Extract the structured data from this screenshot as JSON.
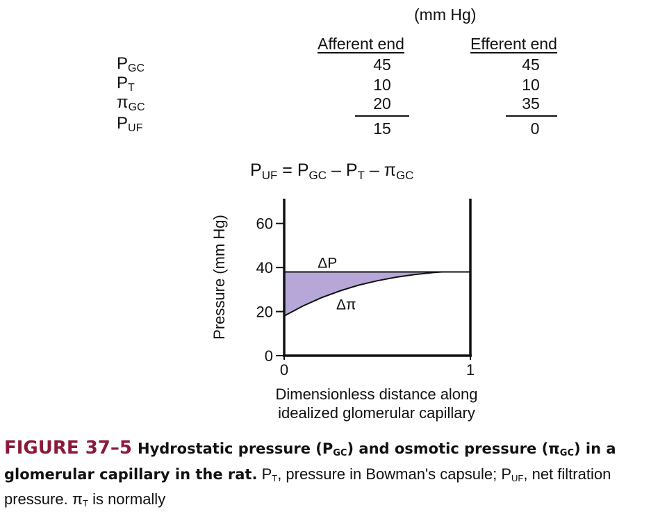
{
  "table": {
    "units": "(mm Hg)",
    "col_afferent": "Afferent end",
    "col_efferent": "Efferent end",
    "rows": [
      {
        "sym": "P",
        "sub": "GC",
        "afferent": "45",
        "efferent": "45"
      },
      {
        "sym": "P",
        "sub": "T",
        "afferent": "10",
        "efferent": "10"
      },
      {
        "sym": "π",
        "sub": "GC",
        "afferent": "20",
        "efferent": "35"
      },
      {
        "sym": "P",
        "sub": "UF",
        "afferent": "15",
        "efferent": "0"
      }
    ]
  },
  "equation": {
    "lhs": "P",
    "lhs_sub": "UF",
    "eq": " = P",
    "t1_sub": "GC",
    "minus1": " – P",
    "t2_sub": "T",
    "minus2": " – π",
    "t3_sub": "GC"
  },
  "chart_data": {
    "type": "area",
    "ylabel": "Pressure (mm Hg)",
    "xlabel_line1": "Dimensionless distance along",
    "xlabel_line2": "idealized glomerular capillary",
    "xlim": [
      0,
      1
    ],
    "ylim": [
      0,
      70
    ],
    "yticks": [
      0,
      20,
      40,
      60
    ],
    "xticks": [
      0,
      1
    ],
    "series": [
      {
        "name": "ΔP",
        "x": [
          0,
          1
        ],
        "y": [
          38,
          38
        ]
      },
      {
        "name": "Δπ",
        "x": [
          0,
          0.1,
          0.2,
          0.3,
          0.4,
          0.5,
          0.6,
          0.7,
          0.8,
          0.85,
          1.0
        ],
        "y": [
          18,
          22.5,
          26.3,
          29.4,
          32,
          34,
          35.6,
          36.8,
          37.7,
          38,
          38
        ]
      }
    ],
    "fill_color": "#b7a6d8",
    "line_color": "#111111"
  },
  "caption": {
    "figure_label": "FIGURE 37–5",
    "bold_1": "Hydrostatic pressure (P",
    "bold_1_sub": "GC",
    "bold_2": ") and osmotic pressure (π",
    "bold_2_sub": "GC",
    "bold_3": ") in a glomerular capillary in the rat.",
    "text_1": " P",
    "text_1_sub": "T",
    "text_2": ", pressure in Bowman's capsule; P",
    "text_2_sub": "UF",
    "text_3": ", net filtration pressure. π",
    "text_3_sub": "T",
    "text_4": " is normally"
  }
}
